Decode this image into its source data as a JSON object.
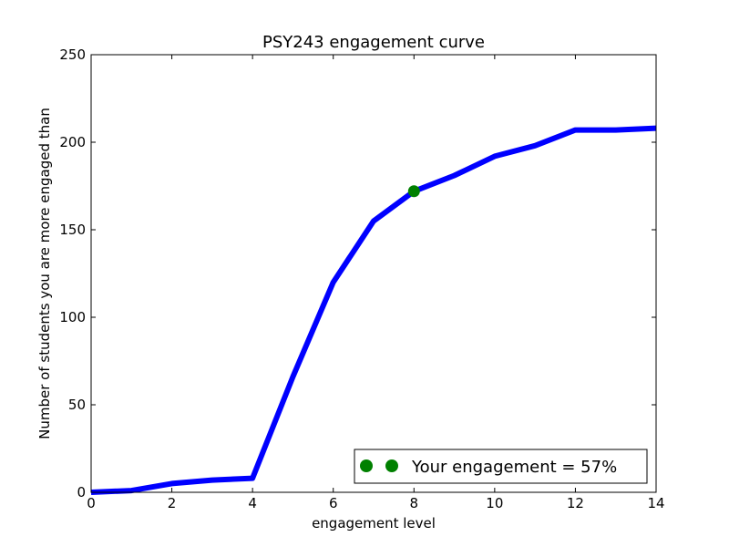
{
  "chart_data": {
    "type": "line",
    "title": "PSY243 engagement curve",
    "xlabel": "engagement level",
    "ylabel": "Number of students you are more engaged than",
    "xlim": [
      0,
      14
    ],
    "ylim": [
      0,
      250
    ],
    "xticks": [
      0,
      2,
      4,
      6,
      8,
      10,
      12,
      14
    ],
    "yticks": [
      0,
      50,
      100,
      150,
      200,
      250
    ],
    "grid": false,
    "series": [
      {
        "x": [
          0,
          1,
          2,
          3,
          4,
          5,
          6,
          7,
          8,
          9,
          10,
          11,
          12,
          13,
          14
        ],
        "y": [
          0,
          1,
          5,
          7,
          8,
          66,
          120,
          155,
          172,
          181,
          192,
          198,
          207,
          207,
          208
        ],
        "color": "#0000ff"
      }
    ],
    "highlight": {
      "x": 8,
      "y": 172,
      "color": "#008000",
      "label": "Your engagement = 57%"
    },
    "legend": {
      "placement": "lower-right"
    }
  }
}
